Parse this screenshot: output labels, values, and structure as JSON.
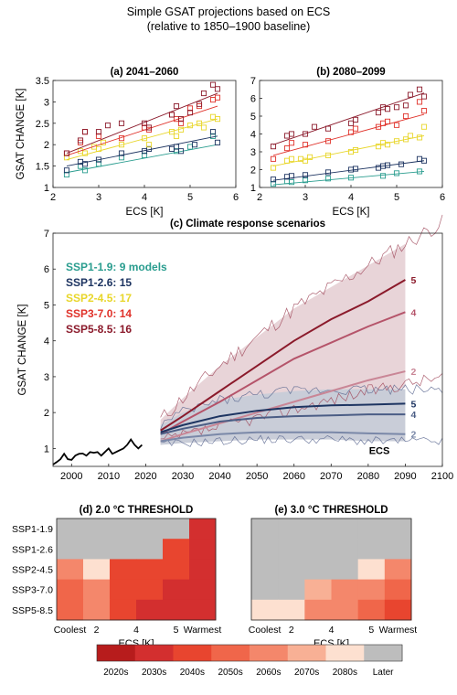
{
  "header": {
    "title": "Simple GSAT projections based on ECS",
    "subtitle": "(relative to 1850–1900 baseline)"
  },
  "colors": {
    "SSP1-1.9": "#2a9d8f",
    "SSP1-2.6": "#1d3461",
    "SSP2-4.5": "#e8d62a",
    "SSP3-7.0": "#e0322a",
    "SSP5-8.5": "#8b1a2b",
    "band_ssp126": "#c9cdd8",
    "band_ssp585": "#e8d4d8"
  },
  "chart_data": [
    {
      "id": "a",
      "type": "scatter",
      "title": "(a)  2041–2060",
      "xlabel": "ECS [K]",
      "ylabel": "GSAT CHANGE [K]",
      "xlim": [
        2,
        6
      ],
      "ylim": [
        1,
        3.5
      ],
      "xticks": [
        "2",
        "3",
        "4",
        "5",
        "6"
      ],
      "yticks": [
        "1",
        "1.5",
        "2",
        "2.5",
        "3",
        "3.5"
      ],
      "series": [
        {
          "key": "SSP1-1.9",
          "points": [
            [
              2.3,
              1.3
            ],
            [
              2.6,
              1.5
            ],
            [
              2.7,
              1.4
            ],
            [
              3.0,
              1.55
            ],
            [
              3.5,
              1.7
            ],
            [
              4.0,
              1.75
            ],
            [
              4.7,
              1.85
            ],
            [
              5.0,
              1.95
            ],
            [
              5.5,
              2.2
            ]
          ],
          "fit": [
            [
              2.3,
              1.35
            ],
            [
              5.6,
              2.0
            ]
          ]
        },
        {
          "key": "SSP1-2.6",
          "points": [
            [
              2.3,
              1.4
            ],
            [
              2.6,
              1.6
            ],
            [
              2.7,
              1.55
            ],
            [
              3.0,
              1.65
            ],
            [
              3.5,
              1.8
            ],
            [
              4.0,
              1.85
            ],
            [
              4.6,
              1.9
            ],
            [
              4.7,
              1.95
            ],
            [
              5.1,
              2.0
            ],
            [
              5.5,
              2.3
            ],
            [
              4.1,
              1.9
            ],
            [
              4.8,
              1.85
            ],
            [
              5.6,
              2.05
            ]
          ],
          "fit": [
            [
              2.3,
              1.5
            ],
            [
              5.6,
              2.2
            ]
          ]
        },
        {
          "key": "SSP2-4.5",
          "points": [
            [
              2.3,
              1.7
            ],
            [
              2.6,
              1.85
            ],
            [
              2.7,
              1.8
            ],
            [
              3.0,
              1.9
            ],
            [
              3.5,
              2.0
            ],
            [
              4.0,
              2.15
            ],
            [
              4.6,
              2.3
            ],
            [
              4.7,
              2.2
            ],
            [
              5.0,
              2.45
            ],
            [
              5.2,
              2.5
            ],
            [
              5.5,
              2.65
            ],
            [
              5.6,
              2.6
            ],
            [
              4.1,
              2.0
            ],
            [
              4.8,
              2.35
            ],
            [
              3.1,
              2.05
            ],
            [
              2.9,
              1.95
            ],
            [
              5.3,
              2.4
            ]
          ],
          "fit": [
            [
              2.3,
              1.65
            ],
            [
              5.6,
              2.6
            ]
          ]
        },
        {
          "key": "SSP3-7.0",
          "points": [
            [
              2.3,
              1.8
            ],
            [
              2.6,
              2.05
            ],
            [
              2.7,
              2.3
            ],
            [
              3.0,
              2.2
            ],
            [
              3.5,
              2.15
            ],
            [
              4.0,
              2.4
            ],
            [
              4.6,
              2.7
            ],
            [
              4.7,
              2.6
            ],
            [
              5.0,
              2.85
            ],
            [
              5.2,
              2.9
            ],
            [
              5.5,
              3.05
            ],
            [
              5.6,
              3.1
            ],
            [
              4.8,
              2.5
            ],
            [
              4.1,
              2.35
            ]
          ],
          "fit": [
            [
              2.3,
              1.75
            ],
            [
              5.6,
              2.9
            ]
          ]
        },
        {
          "key": "SSP5-8.5",
          "points": [
            [
              2.3,
              1.8
            ],
            [
              2.6,
              2.1
            ],
            [
              2.7,
              2.3
            ],
            [
              3.0,
              2.3
            ],
            [
              3.5,
              2.5
            ],
            [
              4.0,
              2.5
            ],
            [
              4.6,
              2.7
            ],
            [
              4.7,
              2.9
            ],
            [
              5.0,
              2.75
            ],
            [
              5.2,
              2.95
            ],
            [
              5.5,
              3.4
            ],
            [
              5.6,
              3.3
            ],
            [
              4.8,
              2.6
            ],
            [
              4.1,
              2.4
            ],
            [
              5.3,
              3.2
            ],
            [
              3.2,
              2.45
            ]
          ],
          "fit": [
            [
              2.3,
              1.8
            ],
            [
              5.6,
              3.2
            ]
          ]
        }
      ]
    },
    {
      "id": "b",
      "type": "scatter",
      "title": "(b)  2080–2099",
      "xlabel": "ECS [K]",
      "ylabel": "",
      "xlim": [
        2,
        6
      ],
      "ylim": [
        1,
        7
      ],
      "xticks": [
        "2",
        "3",
        "4",
        "5",
        "6"
      ],
      "yticks": [
        "1",
        "2",
        "3",
        "4",
        "5",
        "6",
        "7"
      ],
      "series": [
        {
          "key": "SSP1-1.9",
          "points": [
            [
              2.3,
              1.2
            ],
            [
              2.6,
              1.35
            ],
            [
              2.7,
              1.3
            ],
            [
              3.0,
              1.4
            ],
            [
              3.5,
              1.5
            ],
            [
              4.0,
              1.55
            ],
            [
              4.7,
              1.65
            ],
            [
              5.0,
              1.8
            ],
            [
              5.5,
              1.9
            ]
          ],
          "fit": [
            [
              2.3,
              1.15
            ],
            [
              5.6,
              1.9
            ]
          ]
        },
        {
          "key": "SSP1-2.6",
          "points": [
            [
              2.3,
              1.45
            ],
            [
              2.6,
              1.6
            ],
            [
              2.7,
              1.65
            ],
            [
              3.0,
              1.7
            ],
            [
              3.5,
              1.85
            ],
            [
              4.0,
              2.0
            ],
            [
              4.6,
              2.1
            ],
            [
              4.7,
              2.2
            ],
            [
              5.1,
              2.3
            ],
            [
              5.5,
              2.6
            ],
            [
              4.1,
              2.05
            ],
            [
              4.8,
              2.25
            ],
            [
              5.6,
              2.5
            ]
          ],
          "fit": [
            [
              2.3,
              1.4
            ],
            [
              5.6,
              2.5
            ]
          ]
        },
        {
          "key": "SSP2-4.5",
          "points": [
            [
              2.3,
              2.1
            ],
            [
              2.6,
              2.5
            ],
            [
              2.7,
              2.6
            ],
            [
              3.0,
              2.5
            ],
            [
              3.5,
              2.8
            ],
            [
              4.0,
              3.0
            ],
            [
              4.6,
              3.3
            ],
            [
              4.7,
              3.5
            ],
            [
              5.0,
              3.6
            ],
            [
              5.2,
              3.7
            ],
            [
              5.5,
              3.8
            ],
            [
              5.6,
              4.4
            ],
            [
              4.1,
              3.1
            ],
            [
              4.8,
              3.4
            ],
            [
              3.1,
              2.7
            ],
            [
              2.9,
              2.6
            ],
            [
              5.3,
              3.9
            ]
          ],
          "fit": [
            [
              2.3,
              2.2
            ],
            [
              5.6,
              3.9
            ]
          ]
        },
        {
          "key": "SSP3-7.0",
          "points": [
            [
              2.3,
              2.6
            ],
            [
              2.6,
              3.2
            ],
            [
              2.7,
              3.5
            ],
            [
              3.0,
              3.4
            ],
            [
              3.5,
              3.6
            ],
            [
              4.0,
              4.1
            ],
            [
              4.6,
              4.4
            ],
            [
              4.7,
              4.6
            ],
            [
              5.0,
              4.5
            ],
            [
              5.2,
              5.0
            ],
            [
              5.5,
              5.8
            ],
            [
              5.6,
              5.3
            ],
            [
              4.8,
              4.7
            ],
            [
              4.1,
              4.3
            ]
          ],
          "fit": [
            [
              2.3,
              2.8
            ],
            [
              5.6,
              5.1
            ]
          ]
        },
        {
          "key": "SSP5-8.5",
          "points": [
            [
              2.3,
              3.3
            ],
            [
              2.6,
              3.9
            ],
            [
              2.7,
              4.0
            ],
            [
              3.0,
              4.0
            ],
            [
              3.5,
              4.3
            ],
            [
              4.0,
              4.6
            ],
            [
              4.6,
              5.2
            ],
            [
              4.7,
              5.5
            ],
            [
              5.0,
              5.5
            ],
            [
              5.2,
              5.6
            ],
            [
              5.5,
              6.5
            ],
            [
              5.6,
              6.1
            ],
            [
              4.8,
              5.4
            ],
            [
              4.1,
              4.8
            ],
            [
              5.3,
              6.2
            ],
            [
              3.2,
              4.4
            ]
          ],
          "fit": [
            [
              2.3,
              3.4
            ],
            [
              5.6,
              6.3
            ]
          ]
        }
      ]
    },
    {
      "id": "c",
      "type": "line",
      "title": "(c)  Climate response scenarios",
      "xlabel": "",
      "ylabel": "GSAT CHANGE  [K]",
      "xlim": [
        1995,
        2100
      ],
      "ylim": [
        0.5,
        7
      ],
      "xticks": [
        "2000",
        "2010",
        "2020",
        "2030",
        "2040",
        "2050",
        "2060",
        "2070",
        "2080",
        "2090",
        "2100"
      ],
      "yticks": [
        "1",
        "2",
        "3",
        "4",
        "5",
        "6",
        "7"
      ],
      "legend": [
        {
          "key": "SSP1-1.9",
          "label": "SSP1-1.9: 9 models"
        },
        {
          "key": "SSP1-2.6",
          "label": "SSP1-2.6: 15"
        },
        {
          "key": "SSP2-4.5",
          "label": "SSP2-4.5: 17"
        },
        {
          "key": "SSP3-7.0",
          "label": "SSP3-7.0: 14"
        },
        {
          "key": "SSP5-8.5",
          "label": "SSP5-8.5: 16"
        }
      ],
      "ecs_label": "ECS",
      "observed": {
        "years": [
          1995,
          1996,
          1997,
          1998,
          1999,
          2000,
          2001,
          2002,
          2003,
          2004,
          2005,
          2006,
          2007,
          2008,
          2009,
          2010,
          2011,
          2012,
          2013,
          2014,
          2015,
          2016,
          2017,
          2018,
          2019
        ],
        "values": [
          0.55,
          0.62,
          0.7,
          0.85,
          0.7,
          0.68,
          0.8,
          0.85,
          0.86,
          0.8,
          0.9,
          0.88,
          0.9,
          0.8,
          0.9,
          1.0,
          0.85,
          0.9,
          0.95,
          1.0,
          1.1,
          1.25,
          1.1,
          1.0,
          1.1
        ]
      },
      "ssp126": {
        "years": [
          2024,
          2030,
          2040,
          2050,
          2060,
          2070,
          2080,
          2090
        ],
        "ecs5": [
          1.45,
          1.65,
          1.9,
          2.05,
          2.15,
          2.2,
          2.22,
          2.25
        ],
        "ecs4": [
          1.4,
          1.55,
          1.75,
          1.85,
          1.9,
          1.92,
          1.95,
          1.95
        ],
        "ecs2": [
          1.2,
          1.3,
          1.4,
          1.45,
          1.45,
          1.45,
          1.42,
          1.4
        ],
        "band_upper": [
          1.65,
          2.0,
          2.35,
          2.5,
          2.6,
          2.65,
          2.65,
          2.65
        ],
        "band_lower": [
          1.1,
          1.15,
          1.2,
          1.25,
          1.25,
          1.25,
          1.2,
          1.2
        ],
        "labels": [
          "5",
          "4",
          "2"
        ]
      },
      "ssp585": {
        "years": [
          2024,
          2030,
          2040,
          2050,
          2060,
          2070,
          2080,
          2090
        ],
        "ecs5": [
          1.5,
          1.9,
          2.6,
          3.3,
          4.0,
          4.6,
          5.1,
          5.7
        ],
        "ecs4": [
          1.4,
          1.75,
          2.3,
          2.9,
          3.5,
          3.95,
          4.4,
          4.8
        ],
        "ecs2": [
          1.2,
          1.4,
          1.7,
          2.0,
          2.3,
          2.6,
          2.9,
          3.15
        ],
        "band_upper": [
          1.8,
          2.4,
          3.3,
          4.1,
          4.9,
          5.5,
          6.1,
          6.7
        ],
        "band_lower": [
          1.1,
          1.25,
          1.5,
          1.75,
          2.0,
          2.25,
          2.5,
          2.7
        ],
        "labels": [
          "5",
          "4",
          "2"
        ]
      }
    },
    {
      "id": "d",
      "type": "heatmap",
      "title": "(d)  2.0 °C THRESHOLD",
      "xlabel": "ECS [K]",
      "rows": [
        "SSP1-1.9",
        "SSP1-2.6",
        "SSP2-4.5",
        "SSP3-7.0",
        "SSP5-8.5"
      ],
      "columns": [
        "Coolest",
        "2",
        "",
        "4",
        "5",
        "Warmest"
      ],
      "xtick_labels": [
        "Coolest",
        "2",
        "4",
        "5",
        "Warmest"
      ],
      "values": [
        [
          "Later",
          "Later",
          "Later",
          "Later",
          "Later",
          "2030s"
        ],
        [
          "Later",
          "Later",
          "Later",
          "Later",
          "2040s",
          "2030s"
        ],
        [
          "2060s",
          "2080s",
          "2040s",
          "2040s",
          "2040s",
          "2030s"
        ],
        [
          "2050s",
          "2060s",
          "2040s",
          "2040s",
          "2030s",
          "2030s"
        ],
        [
          "2050s",
          "2060s",
          "2040s",
          "2030s",
          "2030s",
          "2030s"
        ]
      ]
    },
    {
      "id": "e",
      "type": "heatmap",
      "title": "(e)  3.0 °C THRESHOLD",
      "xlabel": "ECS [K]",
      "rows": [
        "SSP1-1.9",
        "SSP1-2.6",
        "SSP2-4.5",
        "SSP3-7.0",
        "SSP5-8.5"
      ],
      "columns": [
        "Coolest",
        "2",
        "",
        "4",
        "5",
        "Warmest"
      ],
      "xtick_labels": [
        "Coolest",
        "2",
        "4",
        "5",
        "Warmest"
      ],
      "values": [
        [
          "Later",
          "Later",
          "Later",
          "Later",
          "Later",
          "Later"
        ],
        [
          "Later",
          "Later",
          "Later",
          "Later",
          "Later",
          "Later"
        ],
        [
          "Later",
          "Later",
          "Later",
          "Later",
          "2080s",
          "2060s"
        ],
        [
          "Later",
          "Later",
          "2070s",
          "2060s",
          "2060s",
          "2050s"
        ],
        [
          "2080s",
          "2080s",
          "2060s",
          "2060s",
          "2050s",
          "2040s"
        ]
      ]
    }
  ],
  "colorbar": {
    "labels": [
      "2020s",
      "2030s",
      "2040s",
      "2050s",
      "2060s",
      "2070s",
      "2080s",
      "Later"
    ],
    "colors": [
      "#b71c1c",
      "#d32f2f",
      "#e8452f",
      "#f0664a",
      "#f4876b",
      "#f8b095",
      "#fde0d0",
      "#bdbdbd"
    ]
  }
}
